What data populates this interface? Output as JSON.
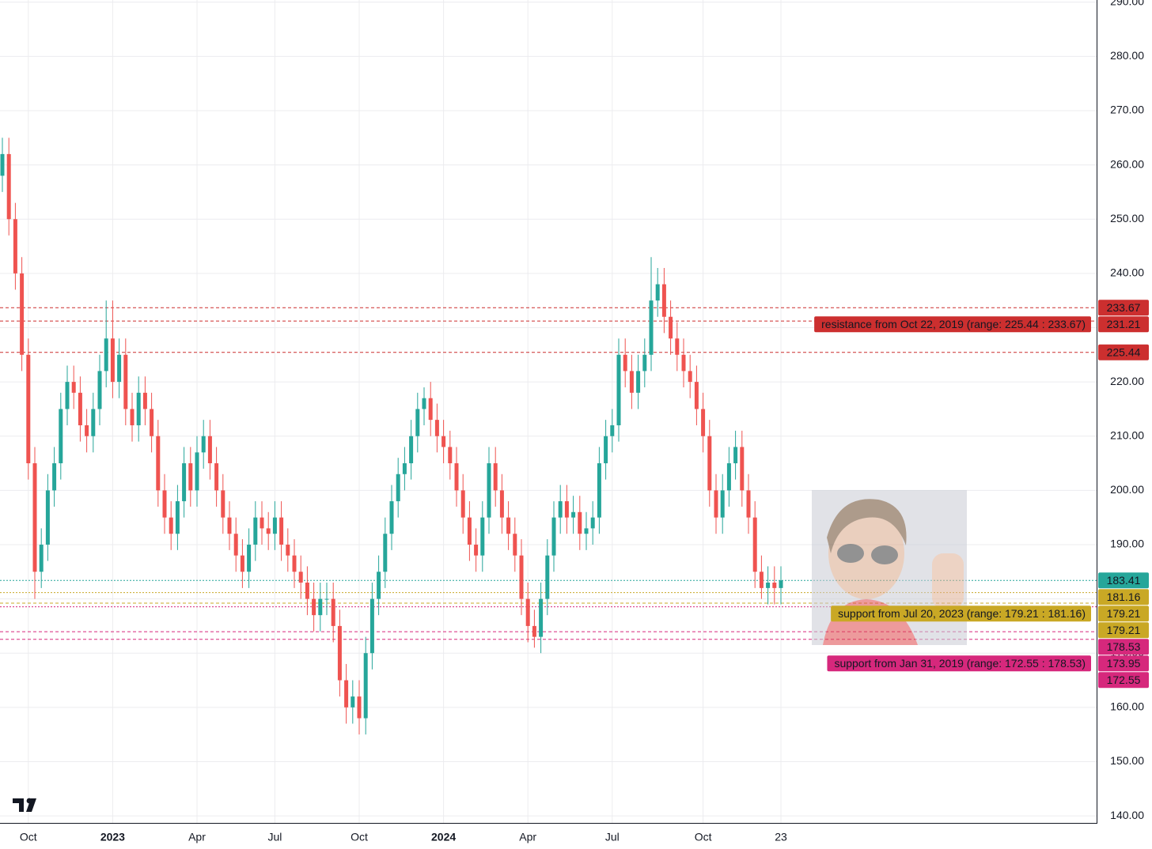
{
  "chart_data": {
    "type": "candlestick",
    "categories": [
      null,
      null,
      null,
      null,
      "Oct",
      null,
      null,
      null,
      null,
      null,
      null,
      null,
      null,
      null,
      null,
      null,
      null,
      "2023",
      null,
      null,
      null,
      null,
      null,
      null,
      null,
      null,
      null,
      null,
      null,
      null,
      "Apr",
      null,
      null,
      null,
      null,
      null,
      null,
      null,
      null,
      null,
      null,
      null,
      "Jul",
      null,
      null,
      null,
      null,
      null,
      null,
      null,
      null,
      null,
      null,
      null,
      null,
      "Oct",
      null,
      null,
      null,
      null,
      null,
      null,
      null,
      null,
      null,
      null,
      null,
      null,
      "2024",
      null,
      null,
      null,
      null,
      null,
      null,
      null,
      null,
      null,
      null,
      null,
      null,
      "Apr",
      null,
      null,
      null,
      null,
      null,
      null,
      null,
      null,
      null,
      null,
      null,
      null,
      "Jul",
      null,
      null,
      null,
      null,
      null,
      null,
      null,
      null,
      null,
      null,
      null,
      null,
      null,
      "Oct",
      null,
      null,
      null,
      null,
      null,
      null,
      null,
      null,
      null,
      null,
      null,
      "23"
    ],
    "open": [
      258,
      262,
      250,
      240,
      225,
      205,
      185,
      190,
      200,
      205,
      215,
      220,
      218,
      212,
      210,
      215,
      222,
      228,
      220,
      225,
      215,
      212,
      218,
      215,
      210,
      200,
      195,
      192,
      198,
      205,
      200,
      207,
      210,
      205,
      200,
      195,
      192,
      188,
      185,
      190,
      195,
      193,
      192,
      195,
      190,
      188,
      185,
      183,
      180,
      177,
      180,
      180,
      175,
      165,
      160,
      162,
      158,
      170,
      180,
      185,
      192,
      198,
      203,
      205,
      210,
      215,
      217,
      213,
      210,
      208,
      205,
      200,
      195,
      190,
      188,
      195,
      205,
      200,
      195,
      192,
      188,
      180,
      175,
      173,
      180,
      188,
      195,
      198,
      195,
      196,
      192,
      193,
      195,
      205,
      210,
      212,
      225,
      222,
      218,
      222,
      225,
      235,
      238,
      232,
      228,
      225,
      222,
      220,
      215,
      210,
      200,
      195,
      200,
      205,
      208,
      200,
      195,
      185,
      182,
      183,
      182
    ],
    "high": [
      265,
      265,
      253,
      243,
      228,
      208,
      193,
      203,
      208,
      218,
      223,
      223,
      221,
      215,
      218,
      225,
      235,
      235,
      228,
      228,
      218,
      221,
      221,
      218,
      213,
      203,
      198,
      201,
      208,
      208,
      210,
      213,
      213,
      208,
      203,
      198,
      195,
      191,
      193,
      198,
      198,
      196,
      198,
      198,
      193,
      191,
      188,
      186,
      183,
      183,
      183,
      183,
      178,
      168,
      165,
      165,
      173,
      183,
      188,
      195,
      201,
      206,
      208,
      213,
      218,
      219,
      220,
      216,
      213,
      211,
      208,
      203,
      198,
      193,
      198,
      208,
      208,
      203,
      198,
      195,
      191,
      183,
      178,
      183,
      191,
      198,
      201,
      201,
      199,
      199,
      196,
      198,
      208,
      213,
      215,
      228,
      228,
      225,
      225,
      228,
      243,
      241,
      241,
      235,
      231,
      228,
      225,
      223,
      218,
      213,
      203,
      203,
      208,
      211,
      211,
      203,
      198,
      188,
      186,
      186,
      186
    ],
    "low": [
      255,
      247,
      237,
      222,
      202,
      180,
      182,
      187,
      197,
      202,
      212,
      215,
      209,
      207,
      207,
      212,
      219,
      217,
      217,
      212,
      209,
      209,
      212,
      207,
      197,
      192,
      189,
      189,
      195,
      197,
      197,
      204,
      202,
      197,
      192,
      189,
      185,
      182,
      182,
      187,
      190,
      189,
      189,
      187,
      185,
      182,
      180,
      177,
      174,
      174,
      177,
      172,
      162,
      157,
      157,
      155,
      155,
      167,
      177,
      182,
      189,
      195,
      200,
      202,
      207,
      212,
      210,
      207,
      205,
      202,
      197,
      192,
      187,
      185,
      185,
      192,
      197,
      192,
      189,
      185,
      177,
      172,
      171,
      170,
      177,
      185,
      192,
      192,
      192,
      189,
      189,
      190,
      192,
      202,
      207,
      209,
      219,
      215,
      215,
      219,
      222,
      232,
      229,
      225,
      222,
      219,
      217,
      212,
      207,
      197,
      192,
      192,
      197,
      202,
      197,
      192,
      182,
      180,
      179,
      179,
      179
    ],
    "close": [
      262,
      250,
      240,
      225,
      205,
      185,
      190,
      200,
      205,
      215,
      220,
      218,
      212,
      210,
      215,
      222,
      228,
      220,
      225,
      215,
      212,
      218,
      215,
      210,
      200,
      195,
      192,
      198,
      205,
      200,
      207,
      210,
      205,
      200,
      195,
      192,
      188,
      185,
      190,
      195,
      193,
      192,
      195,
      190,
      188,
      185,
      183,
      180,
      177,
      180,
      180,
      175,
      165,
      160,
      162,
      158,
      170,
      180,
      185,
      192,
      198,
      203,
      205,
      210,
      215,
      217,
      213,
      210,
      208,
      205,
      200,
      195,
      190,
      188,
      195,
      205,
      200,
      195,
      192,
      188,
      180,
      175,
      173,
      180,
      188,
      195,
      198,
      195,
      196,
      192,
      193,
      195,
      205,
      210,
      212,
      225,
      222,
      218,
      222,
      225,
      235,
      238,
      232,
      228,
      225,
      222,
      220,
      215,
      210,
      200,
      195,
      200,
      205,
      208,
      200,
      195,
      185,
      182,
      183,
      182,
      183.41
    ],
    "up_color": "#26a69a",
    "down_color": "#ef5350",
    "ylim": [
      138.7,
      290.4
    ],
    "yticks": [
      {
        "value": 140,
        "label": "140.00"
      },
      {
        "value": 150,
        "label": "150.00"
      },
      {
        "value": 160,
        "label": "160.00"
      },
      {
        "value": 170,
        "label": "170.00"
      },
      {
        "value": 180,
        "label": "180.00"
      },
      {
        "value": 190,
        "label": "190.00"
      },
      {
        "value": 200,
        "label": "200.00"
      },
      {
        "value": 210,
        "label": "210.00"
      },
      {
        "value": 220,
        "label": "220.00"
      },
      {
        "value": 230,
        "label": "230.00"
      },
      {
        "value": 240,
        "label": "240.00"
      },
      {
        "value": 250,
        "label": "250.00"
      },
      {
        "value": 260,
        "label": "260.00"
      },
      {
        "value": 270,
        "label": "270.00"
      },
      {
        "value": 280,
        "label": "280.00"
      },
      {
        "value": 290,
        "label": "290.00"
      }
    ],
    "grid": true,
    "levels": [
      {
        "value": 233.67,
        "color": "#cc2f2f",
        "style": "dashed"
      },
      {
        "value": 231.21,
        "color": "#cc2f2f",
        "style": "dashed"
      },
      {
        "value": 225.44,
        "color": "#cc2f2f",
        "style": "dashed"
      },
      {
        "value": 183.41,
        "color": "#26a69a",
        "style": "dotted"
      },
      {
        "value": 181.16,
        "color": "#c9a825",
        "style": "dotted"
      },
      {
        "value": 179.21,
        "color": "#c9a825",
        "style": "dashed"
      },
      {
        "value": 179.21,
        "color": "#c9a825",
        "style": "dashed"
      },
      {
        "value": 178.53,
        "color": "#d6287c",
        "style": "dotted"
      },
      {
        "value": 173.95,
        "color": "#d6287c",
        "style": "dashed"
      },
      {
        "value": 172.55,
        "color": "#d6287c",
        "style": "dashed"
      }
    ],
    "annotations": [
      {
        "text": "resistance from Oct 22, 2019 (range: 225.44 : 233.67)",
        "value": 231.21,
        "color": "#cc2f2f",
        "text_color": "#ffffff"
      },
      {
        "text": "support from Jul 20, 2023 (range: 179.21 : 181.16)",
        "value": 179.21,
        "color": "#c9a825",
        "text_color": "#131722"
      },
      {
        "text": "support from Jan 31, 2019 (range: 172.55 : 178.53)",
        "value": 173.95,
        "color": "#d6287c",
        "text_color": "#ffffff"
      }
    ]
  }
}
